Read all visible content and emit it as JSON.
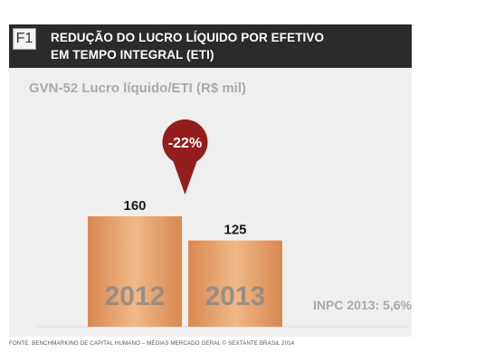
{
  "header": {
    "figure_label": "F1",
    "title_line1": "REDUÇÃO DO LUCRO LÍQUIDO POR EFETIVO",
    "title_line2": "EM TEMPO INTEGRAL (ETI)"
  },
  "colors": {
    "header_bg": "#2b2b2b",
    "panel_bg": "#efefef",
    "bar_fill": "#e4a06b",
    "badge_fill": "#941d1d"
  },
  "chart_data": {
    "type": "bar",
    "subtitle": "GVN-52 Lucro líquido/ETI (R$ mil)",
    "categories": [
      "2012",
      "2013"
    ],
    "values": [
      160,
      125
    ],
    "value_labels": [
      "160",
      "125"
    ],
    "change_label": "-22%",
    "note": "INPC 2013: 5,6%",
    "ylim": [
      0,
      200
    ],
    "legend": "none",
    "grid": false
  },
  "footer": {
    "source": "FONTE: BENCHMARKING DE CAPITAL HUMANO – MÉDIAS MERCADO GERAL © SEXTANTE BRASIL 2014"
  }
}
